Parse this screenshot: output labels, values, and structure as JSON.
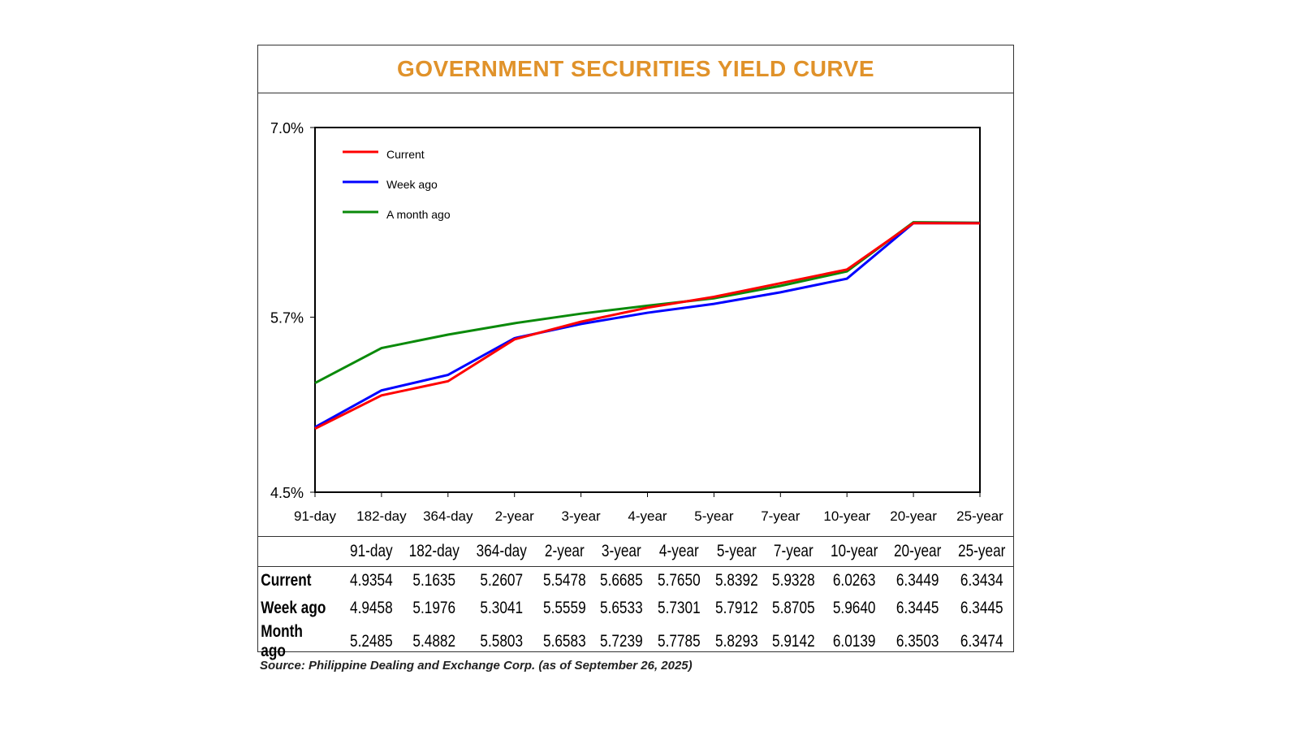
{
  "title": "GOVERNMENT SECURITIES YIELD CURVE",
  "source": "Source: Philippine Dealing and Exchange Corp. (as of September 26, 2025)",
  "chart_data": {
    "type": "line",
    "title": "GOVERNMENT SECURITIES YIELD CURVE",
    "categories": [
      "91-day",
      "182-day",
      "364-day",
      "2-year",
      "3-year",
      "4-year",
      "5-year",
      "7-year",
      "10-year",
      "20-year",
      "25-year"
    ],
    "ylim": [
      4.5,
      7.0
    ],
    "yticks": [
      {
        "v": 7.0,
        "label": "7.0%"
      },
      {
        "v": 5.7,
        "label": "5.7%"
      },
      {
        "v": 4.5,
        "label": "4.5%"
      }
    ],
    "legend_position": "top-left",
    "grid": false,
    "series": [
      {
        "name": "Current",
        "color": "#ff0000",
        "values": [
          4.9354,
          5.1635,
          5.2607,
          5.5478,
          5.6685,
          5.765,
          5.8392,
          5.9328,
          6.0263,
          6.3449,
          6.3434
        ]
      },
      {
        "name": "Week ago",
        "color": "#0000ff",
        "values": [
          4.9458,
          5.1976,
          5.3041,
          5.5559,
          5.6533,
          5.7301,
          5.7912,
          5.8705,
          5.964,
          6.3445,
          6.3445
        ]
      },
      {
        "name": "A month ago",
        "color": "#0a8a0a",
        "values": [
          5.2485,
          5.4882,
          5.5803,
          5.6583,
          5.7239,
          5.7785,
          5.8293,
          5.9142,
          6.0139,
          6.3503,
          6.3474
        ]
      }
    ]
  },
  "table": {
    "headers": [
      "91-day",
      "182-day",
      "364-day",
      "2-year",
      "3-year",
      "4-year",
      "5-year",
      "7-year",
      "10-year",
      "20-year",
      "25-year"
    ],
    "rows": [
      {
        "label": "Current",
        "values": [
          "4.9354",
          "5.1635",
          "5.2607",
          "5.5478",
          "5.6685",
          "5.7650",
          "5.8392",
          "5.9328",
          "6.0263",
          "6.3449",
          "6.3434"
        ]
      },
      {
        "label": "Week ago",
        "values": [
          "4.9458",
          "5.1976",
          "5.3041",
          "5.5559",
          "5.6533",
          "5.7301",
          "5.7912",
          "5.8705",
          "5.9640",
          "6.3445",
          "6.3445"
        ]
      },
      {
        "label": "Month ago",
        "values": [
          "5.2485",
          "5.4882",
          "5.5803",
          "5.6583",
          "5.7239",
          "5.7785",
          "5.8293",
          "5.9142",
          "6.0139",
          "6.3503",
          "6.3474"
        ]
      }
    ]
  }
}
